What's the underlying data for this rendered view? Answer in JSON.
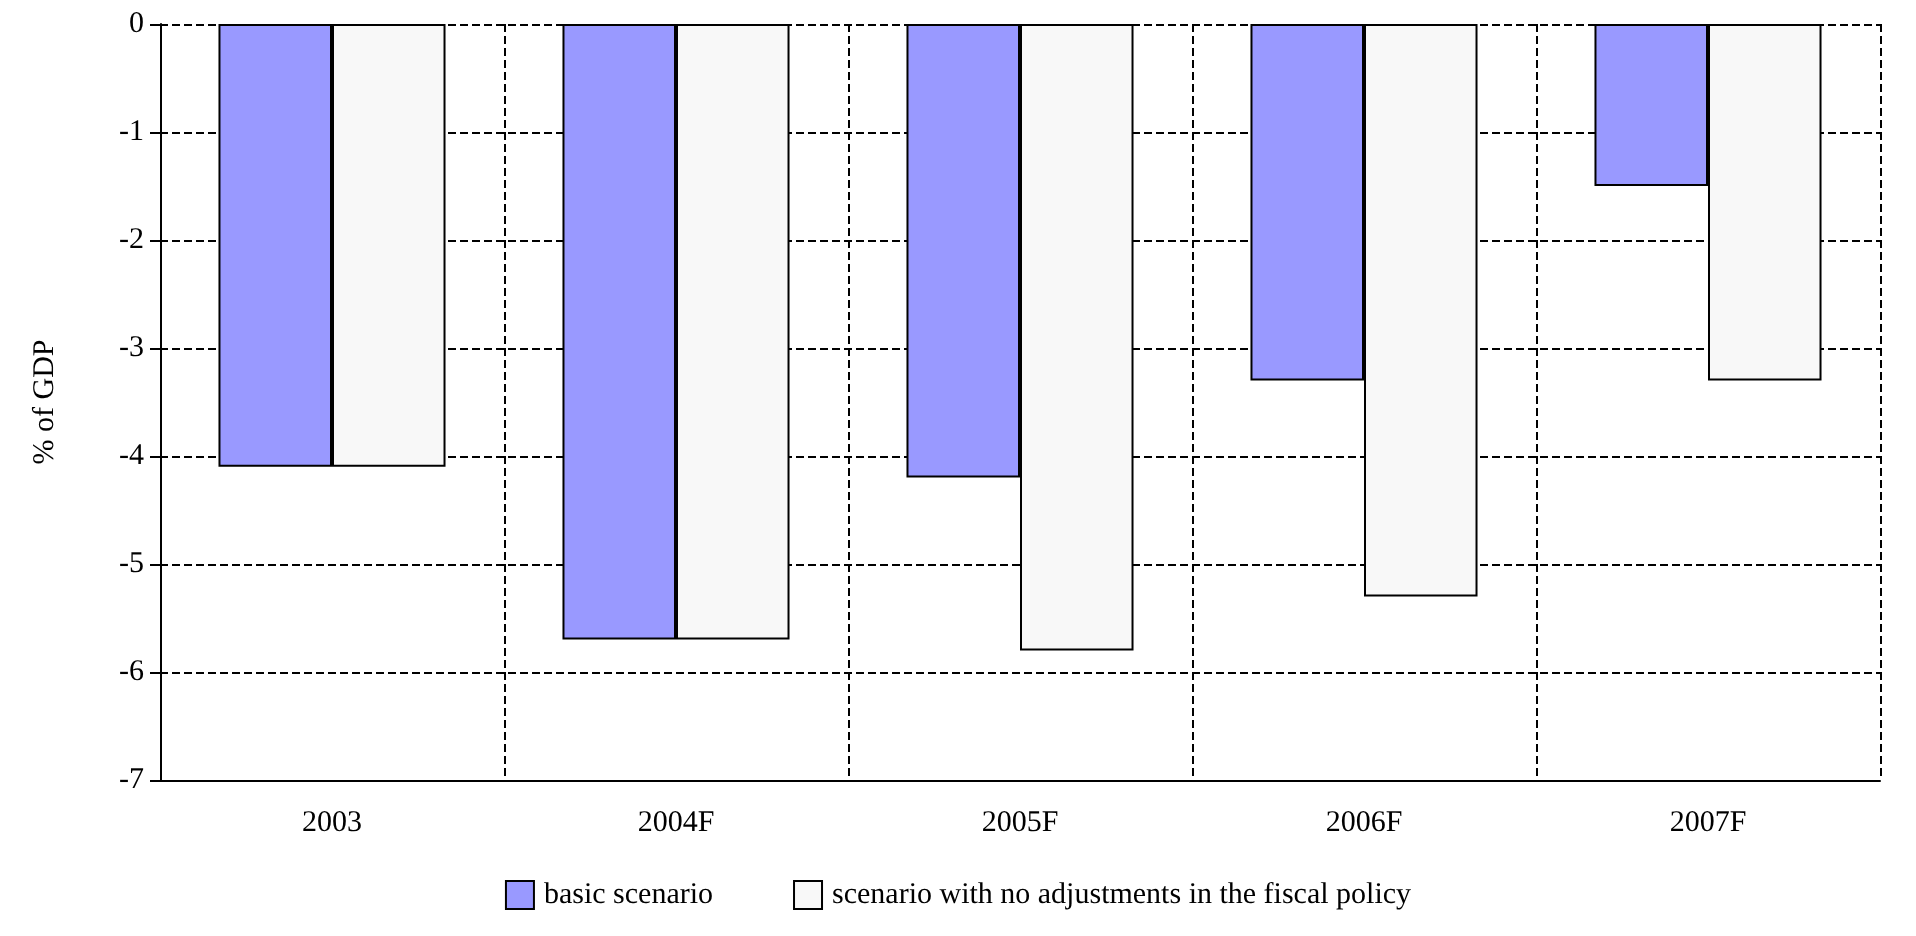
{
  "chart_data": {
    "type": "bar",
    "ylabel": "% of GDP",
    "categories": [
      "2003",
      "2004F",
      "2005F",
      "2006F",
      "2007F"
    ],
    "series": [
      {
        "name": "basic scenario",
        "color": "#9999ff",
        "values": [
          -4.1,
          -5.7,
          -4.2,
          -3.3,
          -1.5
        ]
      },
      {
        "name": "scenario with no adjustments in the fiscal policy",
        "color": "#f8f8f8",
        "values": [
          -4.1,
          -5.7,
          -5.8,
          -5.3,
          -3.3
        ]
      }
    ],
    "ylim": [
      -7,
      0
    ],
    "yticks": [
      -7,
      -6,
      -5,
      -4,
      -3,
      -2,
      -1,
      0
    ],
    "grid": true,
    "legend": "bottom"
  }
}
